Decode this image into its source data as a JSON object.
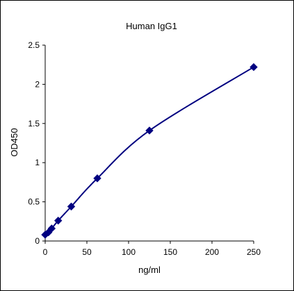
{
  "chart_data": {
    "type": "scatter",
    "title": "Human IgG1",
    "xlabel": "ng/ml",
    "ylabel": "OD450",
    "xlim": [
      0,
      250
    ],
    "ylim": [
      0,
      2.5
    ],
    "xticks": [
      0,
      50,
      100,
      150,
      200,
      250
    ],
    "yticks": [
      0,
      0.5,
      1,
      1.5,
      2,
      2.5
    ],
    "xtick_labels": [
      "0",
      "50",
      "100",
      "150",
      "200",
      "250"
    ],
    "ytick_labels": [
      "0",
      "0.5",
      "1",
      "1.5",
      "2",
      "2.5"
    ],
    "grid": false,
    "legend": false,
    "colors": {
      "marker": "#000080",
      "line": "#000080",
      "axis": "#000000"
    },
    "series": [
      {
        "marker": "diamond",
        "line": "smooth",
        "points": [
          {
            "x": 0,
            "y": 0.08
          },
          {
            "x": 3.9,
            "y": 0.11
          },
          {
            "x": 7.8,
            "y": 0.16
          },
          {
            "x": 15.6,
            "y": 0.26
          },
          {
            "x": 31.25,
            "y": 0.44
          },
          {
            "x": 62.5,
            "y": 0.8
          },
          {
            "x": 125,
            "y": 1.41
          },
          {
            "x": 250,
            "y": 2.22
          }
        ]
      }
    ]
  }
}
